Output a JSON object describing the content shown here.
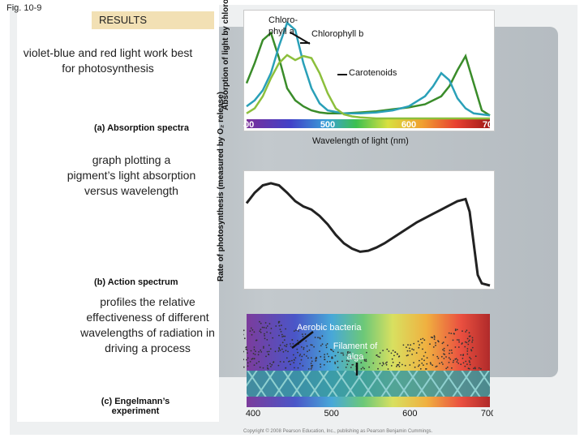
{
  "figure_label": "Fig. 10-9",
  "results_label": "RESULTS",
  "notes": {
    "absorption": "violet-blue and red light work best for photosynthesis",
    "action": "graph plotting a pigment’s light absorption versus wavelength",
    "engelmann": "profiles the relative effectiveness of different wavelengths of radiation in driving a process"
  },
  "panel_labels": {
    "a": "(a) Absorption spectra",
    "b": "(b) Action spectrum",
    "c": "(c) Engelmann’s experiment"
  },
  "copyright": "Copyright © 2008 Pearson Education, Inc., publishing as Pearson Benjamin Cummings.",
  "colors": {
    "chlorophyll_a": "#3a8c2a",
    "chlorophyll_b": "#2aa0b8",
    "carotenoids": "#8cbf3c",
    "action_line": "#222222",
    "filament": "#3a9aa0"
  },
  "chart_data": [
    {
      "type": "line",
      "title": "",
      "ylabel": "Absorption of light by chloroplast pigments",
      "xlabel": "Wavelength of light (nm)",
      "xlim": [
        400,
        700
      ],
      "x_ticks": [
        "400",
        "500",
        "600",
        "700"
      ],
      "grid": false,
      "series_labels": {
        "chlorophyll_a": "Chloro-phyll a",
        "chlorophyll_b": "Chlorophyll b",
        "carotenoids": "Carotenoids"
      },
      "series": [
        {
          "name": "Chlorophyll a",
          "x": [
            400,
            410,
            420,
            430,
            440,
            450,
            460,
            470,
            480,
            490,
            500,
            520,
            540,
            560,
            580,
            600,
            620,
            640,
            650,
            660,
            670,
            680,
            690,
            700
          ],
          "values": [
            0.35,
            0.55,
            0.78,
            0.85,
            0.6,
            0.3,
            0.18,
            0.12,
            0.08,
            0.06,
            0.05,
            0.05,
            0.06,
            0.07,
            0.09,
            0.11,
            0.14,
            0.22,
            0.32,
            0.48,
            0.62,
            0.35,
            0.08,
            0.03
          ]
        },
        {
          "name": "Chlorophyll b",
          "x": [
            400,
            410,
            420,
            430,
            440,
            450,
            460,
            470,
            480,
            490,
            500,
            520,
            540,
            560,
            580,
            600,
            620,
            630,
            640,
            650,
            660,
            670,
            680,
            700
          ],
          "values": [
            0.12,
            0.18,
            0.28,
            0.45,
            0.72,
            0.95,
            0.88,
            0.55,
            0.3,
            0.15,
            0.08,
            0.05,
            0.05,
            0.06,
            0.08,
            0.12,
            0.22,
            0.32,
            0.45,
            0.38,
            0.2,
            0.1,
            0.05,
            0.03
          ]
        },
        {
          "name": "Carotenoids",
          "x": [
            400,
            410,
            420,
            430,
            440,
            450,
            460,
            470,
            480,
            490,
            500,
            510,
            520,
            530,
            540,
            560,
            700
          ],
          "values": [
            0.05,
            0.1,
            0.22,
            0.4,
            0.55,
            0.63,
            0.58,
            0.62,
            0.6,
            0.45,
            0.25,
            0.1,
            0.04,
            0.02,
            0.01,
            0.0,
            0.0
          ]
        }
      ]
    },
    {
      "type": "line",
      "title": "",
      "ylabel": "Rate of photosynthesis (measured by O₂ release)",
      "xlabel": "",
      "xlim": [
        400,
        700
      ],
      "grid": false,
      "series": [
        {
          "name": "",
          "x": [
            400,
            410,
            420,
            430,
            440,
            450,
            460,
            470,
            480,
            490,
            500,
            510,
            520,
            530,
            540,
            550,
            560,
            570,
            580,
            590,
            600,
            610,
            620,
            630,
            640,
            650,
            660,
            670,
            675,
            680,
            685,
            690,
            700
          ],
          "values": [
            0.78,
            0.88,
            0.95,
            0.97,
            0.95,
            0.88,
            0.8,
            0.75,
            0.72,
            0.66,
            0.58,
            0.48,
            0.4,
            0.35,
            0.32,
            0.33,
            0.36,
            0.4,
            0.45,
            0.5,
            0.55,
            0.6,
            0.64,
            0.68,
            0.72,
            0.76,
            0.8,
            0.82,
            0.7,
            0.4,
            0.1,
            0.02,
            0.0
          ]
        }
      ]
    },
    {
      "type": "scatter",
      "title": "",
      "xlim": [
        400,
        700
      ],
      "x_ticks": [
        "400",
        "500",
        "600",
        "700"
      ],
      "annotations": {
        "bacteria": "Aerobic bacteria",
        "filament": "Filament of alga"
      }
    }
  ]
}
